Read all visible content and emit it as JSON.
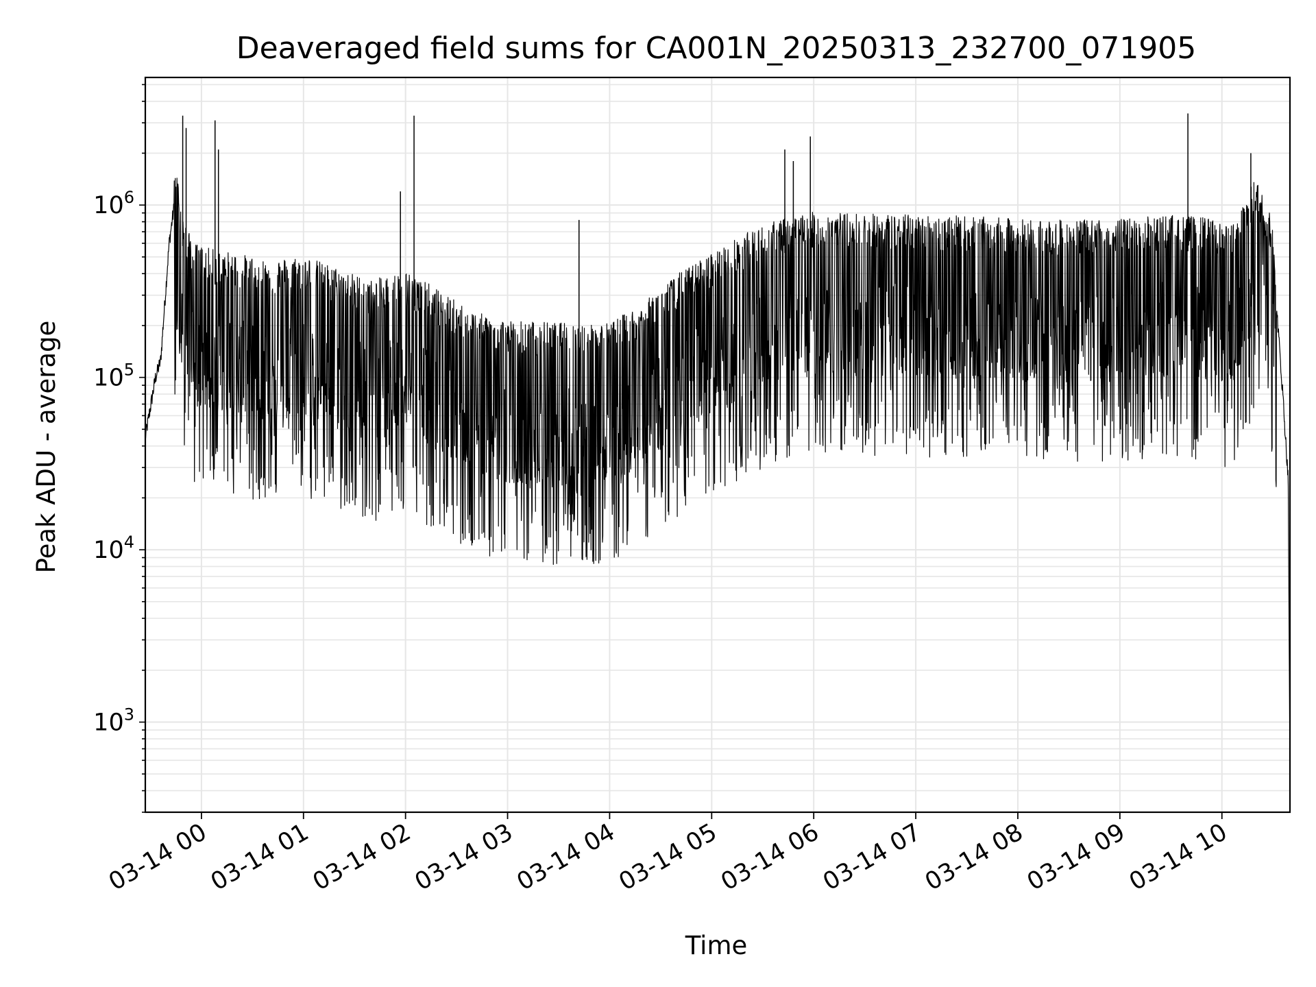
{
  "chart_data": {
    "type": "line",
    "title": "Deaveraged field sums for CA001N_20250313_232700_071905",
    "xlabel": "Time",
    "ylabel": "Peak ADU - average",
    "yscale": "log",
    "ylim": [
      300,
      5500000
    ],
    "xlim": [
      "2025-03-13 23:27",
      "2025-03-14 10:40"
    ],
    "grid": true,
    "line_color": "#000000",
    "grid_color": "#e6e6e6",
    "x_ticks": [
      {
        "t": "2025-03-14 00:00",
        "label": "03-14 00"
      },
      {
        "t": "2025-03-14 01:00",
        "label": "03-14 01"
      },
      {
        "t": "2025-03-14 02:00",
        "label": "03-14 02"
      },
      {
        "t": "2025-03-14 03:00",
        "label": "03-14 03"
      },
      {
        "t": "2025-03-14 04:00",
        "label": "03-14 04"
      },
      {
        "t": "2025-03-14 05:00",
        "label": "03-14 05"
      },
      {
        "t": "2025-03-14 06:00",
        "label": "03-14 06"
      },
      {
        "t": "2025-03-14 07:00",
        "label": "03-14 07"
      },
      {
        "t": "2025-03-14 08:00",
        "label": "03-14 08"
      },
      {
        "t": "2025-03-14 09:00",
        "label": "03-14 09"
      },
      {
        "t": "2025-03-14 10:00",
        "label": "03-14 10"
      }
    ],
    "y_ticks": [
      {
        "value": 1000,
        "base": "10",
        "exp": "3"
      },
      {
        "value": 10000,
        "base": "10",
        "exp": "4"
      },
      {
        "value": 100000,
        "base": "10",
        "exp": "5"
      },
      {
        "value": 1000000,
        "base": "10",
        "exp": "6"
      }
    ],
    "series": [
      {
        "x": [
          "2025-03-13 23:27",
          "2025-03-13 23:33",
          "2025-03-13 23:36",
          "2025-03-13 23:41",
          "2025-03-13 23:44",
          "2025-03-13 23:46",
          "2025-03-13 23:50",
          "2025-03-13 23:55",
          "2025-03-14 00:05",
          "2025-03-14 00:20",
          "2025-03-14 00:40",
          "2025-03-14 01:00",
          "2025-03-14 01:20",
          "2025-03-14 01:40",
          "2025-03-14 02:00",
          "2025-03-14 02:10",
          "2025-03-14 02:40",
          "2025-03-14 03:00",
          "2025-03-14 03:30",
          "2025-03-14 04:00",
          "2025-03-14 04:20",
          "2025-03-14 04:40",
          "2025-03-14 05:00",
          "2025-03-14 05:20",
          "2025-03-14 05:40",
          "2025-03-14 06:00",
          "2025-03-14 06:30",
          "2025-03-14 07:00",
          "2025-03-14 07:30",
          "2025-03-14 08:00",
          "2025-03-14 08:30",
          "2025-03-14 09:00",
          "2025-03-14 09:30",
          "2025-03-14 09:50",
          "2025-03-14 10:05",
          "2025-03-14 10:20",
          "2025-03-14 10:30",
          "2025-03-14 10:36",
          "2025-03-14 10:39",
          "2025-03-14 10:40"
        ],
        "y": [
          45000,
          100000,
          125000,
          600000,
          1000000,
          900000,
          500000,
          380000,
          350000,
          330000,
          300000,
          320000,
          270000,
          230000,
          260000,
          230000,
          150000,
          135000,
          130000,
          130000,
          170000,
          250000,
          330000,
          430000,
          520000,
          570000,
          560000,
          550000,
          540000,
          520000,
          510000,
          520000,
          550000,
          530000,
          470000,
          900000,
          500000,
          75000,
          25000,
          500
        ],
        "spikes": [
          [
            "2025-03-13 23:49",
            3300000
          ],
          [
            "2025-03-13 23:51",
            2800000
          ],
          [
            "2025-03-14 00:08",
            3100000
          ],
          [
            "2025-03-14 00:10",
            2100000
          ],
          [
            "2025-03-14 01:57",
            1200000
          ],
          [
            "2025-03-14 02:05",
            3300000
          ],
          [
            "2025-03-14 03:42",
            820000
          ],
          [
            "2025-03-14 05:43",
            2100000
          ],
          [
            "2025-03-14 05:48",
            1800000
          ],
          [
            "2025-03-14 05:58",
            2500000
          ],
          [
            "2025-03-14 07:48",
            780000
          ],
          [
            "2025-03-14 09:40",
            3400000
          ],
          [
            "2025-03-14 10:17",
            2000000
          ]
        ]
      }
    ]
  }
}
